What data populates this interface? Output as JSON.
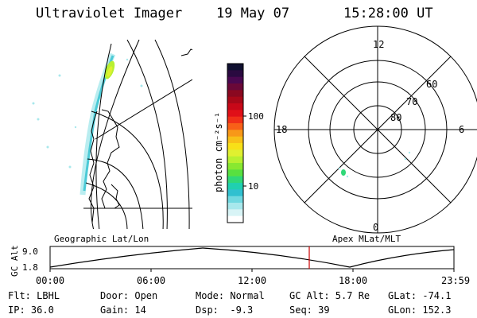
{
  "header": {
    "instrument": "Ultraviolet Imager",
    "date": "19 May 07",
    "time": "15:28:00 UT"
  },
  "colorbar": {
    "title": "photon cm⁻²s⁻¹",
    "ticks": [
      "100",
      "10"
    ],
    "colors": [
      "#101030",
      "#2a0a40",
      "#4a0850",
      "#6a0838",
      "#8a0820",
      "#a80818",
      "#c80818",
      "#e01018",
      "#f03018",
      "#f86018",
      "#f89818",
      "#f8c018",
      "#f8e018",
      "#e0f030",
      "#b8f030",
      "#88e830",
      "#58e040",
      "#30d878",
      "#20d0b0",
      "#30c0d0",
      "#70d8e0",
      "#a8e8ec",
      "#d8f4f6",
      "#ffffff"
    ]
  },
  "left_panel": {
    "caption": "Geographic Lat/Lon"
  },
  "right_panel": {
    "caption": "Apex MLat/MLT",
    "mlt_labels": [
      "12",
      "18",
      "6",
      "0"
    ],
    "lat_labels": [
      "60",
      "70",
      "80"
    ]
  },
  "timeline": {
    "ylabel": "GC Alt",
    "y_ticks": [
      "9.0",
      "1.8"
    ],
    "x_ticks": [
      "00:00",
      "06:00",
      "12:00",
      "18:00",
      "23:59"
    ],
    "marker_color": "#cc0000"
  },
  "status": {
    "flt": "Flt: LBHL",
    "ip": "IP: 36.0",
    "door": "Door: Open",
    "gain": "Gain: 14",
    "mode": "Mode: Normal",
    "dsp": "Dsp:  -9.3",
    "gcalt": "GC Alt: 5.7 Re",
    "seq": "Seq: 39",
    "glat": "GLat: -74.1",
    "glon": "GLon: 152.3"
  }
}
